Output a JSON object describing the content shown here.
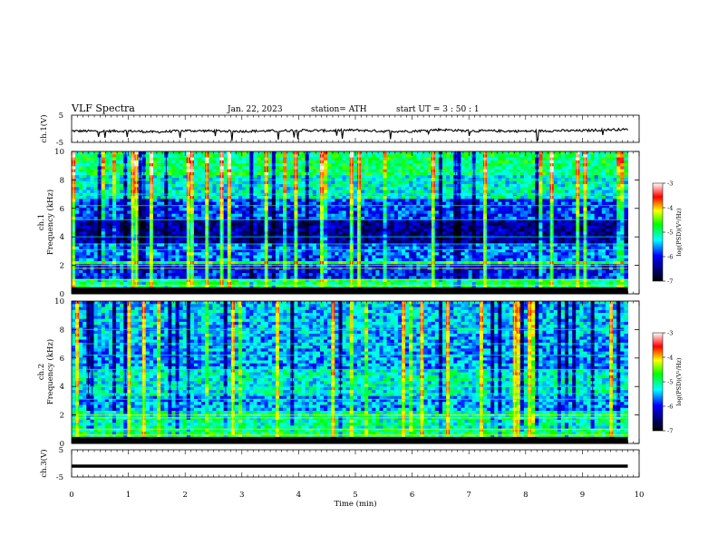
{
  "header": {
    "title": "VLF  Spectra",
    "date": "Jan. 22, 2023",
    "station": "station= ATH",
    "start": "start  UT  =   3  : 50 : 1"
  },
  "colors": {
    "cmap": [
      "#ffffff",
      "#ff0000",
      "#ffff00",
      "#00ff00",
      "#00ffff",
      "#0000ff",
      "#000060",
      "#000000"
    ],
    "trace": "#000000"
  },
  "chart_data": [
    {
      "type": "line",
      "id": "ch1",
      "ylabel": "ch.1(V)",
      "ylim": [
        -5,
        5
      ],
      "yticks": [
        "5",
        "-5"
      ],
      "x": [
        0,
        0.5,
        1,
        1.5,
        2,
        2.5,
        3,
        3.5,
        4,
        4.5,
        5,
        5.5,
        6,
        6.5,
        7,
        7.5,
        8,
        8.5,
        9,
        9.5,
        9.8
      ],
      "y": [
        -0.8,
        -0.9,
        -0.8,
        -1.2,
        -0.7,
        -0.8,
        -0.9,
        -0.8,
        -0.6,
        -0.7,
        -0.5,
        -0.9,
        -0.9,
        -0.3,
        -0.8,
        -0.8,
        -0.9,
        -0.7,
        -0.7,
        -0.3,
        -0.3
      ]
    },
    {
      "type": "heatmap",
      "id": "ch1-spectrogram",
      "ylabel_top": "ch.1",
      "ylabel": "Frequency  (kHz)",
      "ylim": [
        0,
        10
      ],
      "yticks": [
        "0",
        "2",
        "4",
        "6",
        "8",
        "10"
      ],
      "xlim": [
        0,
        9.8
      ],
      "colorbar": {
        "label": "log(PSD)(V²/Hz)",
        "range": [
          -7,
          -3
        ],
        "ticks": [
          "-3",
          "-4",
          "-5",
          "-6",
          "-7"
        ]
      },
      "bands": [
        {
          "f": [
            0,
            0.3
          ],
          "level": -7
        },
        {
          "f": [
            0.3,
            1.0
          ],
          "level": -5
        },
        {
          "f": [
            1.0,
            2.0
          ],
          "level": -6
        },
        {
          "f": [
            2.0,
            2.3
          ],
          "level": -4.8
        },
        {
          "f": [
            2.3,
            3.5
          ],
          "level": -5.8
        },
        {
          "f": [
            3.5,
            5.2
          ],
          "level": -6.4
        },
        {
          "f": [
            5.2,
            6.6
          ],
          "level": -5.9
        },
        {
          "f": [
            6.6,
            8.4
          ],
          "level": -5.3
        },
        {
          "f": [
            8.4,
            10
          ],
          "level": -5.0
        }
      ]
    },
    {
      "type": "heatmap",
      "id": "ch2-spectrogram",
      "ylabel_top": "ch.2",
      "ylabel": "Frequency  (kHz)",
      "ylim": [
        0,
        10
      ],
      "yticks": [
        "0",
        "2",
        "4",
        "6",
        "8",
        "10"
      ],
      "xlim": [
        0,
        9.8
      ],
      "colorbar": {
        "label": "log(PSD)(V²/Hz)",
        "range": [
          -7,
          -3
        ],
        "ticks": [
          "-3",
          "-4",
          "-5",
          "-6",
          "-7"
        ]
      },
      "bands": [
        {
          "f": [
            0,
            0.3
          ],
          "level": -7
        },
        {
          "f": [
            0.3,
            1.0
          ],
          "level": -5
        },
        {
          "f": [
            1.0,
            2.2
          ],
          "level": -5.2
        },
        {
          "f": [
            2.2,
            3.4
          ],
          "level": -5.6
        },
        {
          "f": [
            3.4,
            5.2
          ],
          "level": -5.3
        },
        {
          "f": [
            5.2,
            7.4
          ],
          "level": -5.6
        },
        {
          "f": [
            7.4,
            10
          ],
          "level": -5.5
        }
      ]
    },
    {
      "type": "line",
      "id": "ch3",
      "ylabel": "ch.3(V)",
      "ylim": [
        -5,
        5
      ],
      "yticks": [
        "5",
        "-5"
      ],
      "x": [
        0,
        9.8
      ],
      "y": [
        -1,
        -1
      ]
    }
  ],
  "xaxis": {
    "label": "Time  (min)",
    "ticks": [
      "0",
      "1",
      "2",
      "3",
      "4",
      "5",
      "6",
      "7",
      "8",
      "9",
      "10"
    ],
    "xlim": [
      0,
      10
    ]
  }
}
